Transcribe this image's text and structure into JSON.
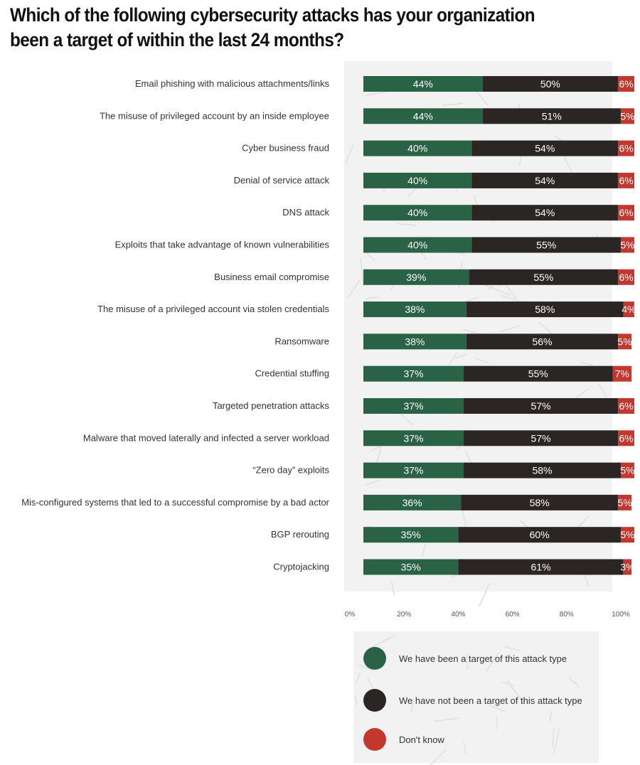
{
  "title_lines": [
    "Which of the following cybersecurity attacks has your organization",
    "been a target of within the last 24 months?"
  ],
  "colors": {
    "target": "#2a6246",
    "not_target": "#2b2523",
    "dont_know": "#c4372e",
    "panel": "#f2f2f2"
  },
  "chart_data": {
    "type": "bar",
    "orientation": "horizontal",
    "stacked": true,
    "title": "Which of the following cybersecurity attacks has your organization been a target of within the last 24 months?",
    "categories": [
      "Email phishing with malicious attachments/links",
      "The misuse of privileged account by an inside employee",
      "Cyber business fraud",
      "Denial of service attack",
      "DNS attack",
      "Exploits that take advantage of known vulnerabilities",
      "Business email compromise",
      "The misuse of a privileged account via stolen credentials",
      "Ransomware",
      "Credential stuffing",
      "Targeted penetration attacks",
      "Malware that moved laterally and infected a server workload",
      "“Zero day” exploits",
      "Mis-configured systems that led to a successful compromise by a bad actor",
      "BGP rerouting",
      "Cryptojacking"
    ],
    "series": [
      {
        "name": "We have been a target of this attack type",
        "color": "#2a6246",
        "values": [
          44,
          44,
          40,
          40,
          40,
          40,
          39,
          38,
          38,
          37,
          37,
          37,
          37,
          36,
          35,
          35
        ],
        "labels": [
          "44%",
          "44%",
          "40%",
          "40%",
          "40%",
          "40%",
          "39%",
          "38%",
          "38%",
          "37%",
          "37%",
          "37%",
          "37%",
          "36%",
          "35%",
          "35%"
        ]
      },
      {
        "name": "We have not been a target of this attack type",
        "color": "#2b2523",
        "values": [
          50,
          51,
          54,
          54,
          54,
          55,
          55,
          58,
          56,
          55,
          57,
          57,
          58,
          58,
          60,
          61
        ],
        "labels": [
          "50%",
          "51%",
          "54%",
          "54%",
          "54%",
          "55%",
          "55%",
          "58%",
          "56%",
          "55%",
          "57%",
          "57%",
          "58%",
          "58%",
          "60%",
          "61%"
        ]
      },
      {
        "name": "Don't know",
        "color": "#c4372e",
        "values": [
          6,
          5,
          6,
          6,
          6,
          5,
          6,
          4,
          5,
          7,
          6,
          6,
          5,
          5,
          5,
          3
        ],
        "labels": [
          "6%",
          "5%",
          "6%",
          "6%",
          "6%",
          "5%",
          "6%",
          "4%",
          "5%",
          "7%",
          "6%",
          "6%",
          "5%",
          "5%",
          "5%",
          "3%"
        ]
      }
    ],
    "xlim": [
      0,
      100
    ],
    "x_ticks": [
      "0%",
      "20%",
      "40%",
      "60%",
      "80%",
      "100%"
    ],
    "grid": false,
    "legend": "bottom"
  }
}
